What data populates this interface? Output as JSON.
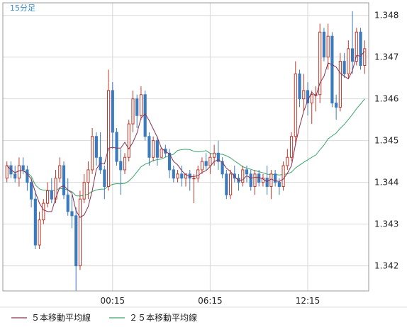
{
  "chart_data": {
    "type": "candlestick",
    "period_label": "15分足",
    "x_tick_labels": [
      "00:15",
      "06:15",
      "12:15"
    ],
    "x_tick_index": [
      26,
      50,
      74
    ],
    "ylim": [
      1.3414,
      1.3483
    ],
    "y_ticks": [
      1.342,
      1.343,
      1.344,
      1.345,
      1.346,
      1.347,
      1.348
    ],
    "y_tick_labels": [
      "1.342",
      "1.343",
      "1.344",
      "1.345",
      "1.346",
      "1.347",
      "1.348"
    ],
    "grid": true,
    "legend_position": "bottom-left",
    "colors": {
      "up": "#c0392b",
      "down": "#3a7abf",
      "ma5": "#8b3050",
      "ma25": "#3aa66a",
      "grid": "#d8d8d8",
      "frame": "#999999"
    },
    "series": [
      {
        "name": "５本移動平均線",
        "color": "#8b3050"
      },
      {
        "name": "２５本移動平均線",
        "color": "#3aa66a"
      }
    ],
    "candles": [
      [
        1.3441,
        1.3445,
        1.344,
        1.3444
      ],
      [
        1.3444,
        1.3445,
        1.3441,
        1.3442
      ],
      [
        1.3442,
        1.3444,
        1.344,
        1.3441
      ],
      [
        1.3441,
        1.3446,
        1.3439,
        1.3444
      ],
      [
        1.3444,
        1.3446,
        1.3442,
        1.3443
      ],
      [
        1.3443,
        1.3444,
        1.3438,
        1.344
      ],
      [
        1.344,
        1.3441,
        1.3434,
        1.3436
      ],
      [
        1.3436,
        1.3438,
        1.3424,
        1.3425
      ],
      [
        1.3425,
        1.3433,
        1.3424,
        1.3431
      ],
      [
        1.3431,
        1.3436,
        1.343,
        1.3435
      ],
      [
        1.3435,
        1.344,
        1.3434,
        1.3438
      ],
      [
        1.3438,
        1.3441,
        1.3435,
        1.3436
      ],
      [
        1.3436,
        1.3443,
        1.3435,
        1.3441
      ],
      [
        1.3441,
        1.3446,
        1.344,
        1.3444
      ],
      [
        1.3444,
        1.3445,
        1.3436,
        1.3437
      ],
      [
        1.3437,
        1.3441,
        1.3432,
        1.3433
      ],
      [
        1.3433,
        1.3437,
        1.3429,
        1.3432
      ],
      [
        1.3432,
        1.3434,
        1.3414,
        1.342
      ],
      [
        1.342,
        1.3438,
        1.3419,
        1.3436
      ],
      [
        1.3436,
        1.3442,
        1.3435,
        1.344
      ],
      [
        1.344,
        1.3445,
        1.3436,
        1.3443
      ],
      [
        1.3443,
        1.3453,
        1.3442,
        1.3451
      ],
      [
        1.3451,
        1.3452,
        1.3444,
        1.3446
      ],
      [
        1.3446,
        1.3452,
        1.3442,
        1.3443
      ],
      [
        1.3443,
        1.3444,
        1.3436,
        1.3439
      ],
      [
        1.3439,
        1.3467,
        1.3438,
        1.3462
      ],
      [
        1.3462,
        1.3464,
        1.3448,
        1.3452
      ],
      [
        1.3452,
        1.3453,
        1.3444,
        1.3445
      ],
      [
        1.3445,
        1.3448,
        1.3437,
        1.3443
      ],
      [
        1.3443,
        1.3447,
        1.3442,
        1.3446
      ],
      [
        1.3446,
        1.3455,
        1.3445,
        1.3454
      ],
      [
        1.3454,
        1.3462,
        1.3452,
        1.346
      ],
      [
        1.346,
        1.3461,
        1.3453,
        1.3456
      ],
      [
        1.3456,
        1.3463,
        1.3455,
        1.3461
      ],
      [
        1.3461,
        1.3462,
        1.345,
        1.3451
      ],
      [
        1.3451,
        1.3452,
        1.3444,
        1.3446
      ],
      [
        1.3446,
        1.3451,
        1.3445,
        1.345
      ],
      [
        1.345,
        1.3451,
        1.3444,
        1.3446
      ],
      [
        1.3446,
        1.3448,
        1.3446,
        1.3448
      ],
      [
        1.3448,
        1.3449,
        1.3446,
        1.3447
      ],
      [
        1.3447,
        1.3448,
        1.3441,
        1.3443
      ],
      [
        1.3443,
        1.3444,
        1.344,
        1.3441
      ],
      [
        1.3441,
        1.3443,
        1.344,
        1.3442
      ],
      [
        1.3442,
        1.3444,
        1.3439,
        1.3441
      ],
      [
        1.3441,
        1.3442,
        1.3439,
        1.3442
      ],
      [
        1.3442,
        1.3443,
        1.3438,
        1.3441
      ],
      [
        1.3441,
        1.3442,
        1.3435,
        1.3441
      ],
      [
        1.3441,
        1.3444,
        1.344,
        1.3443
      ],
      [
        1.3443,
        1.3446,
        1.3442,
        1.3445
      ],
      [
        1.3445,
        1.3447,
        1.3443,
        1.3444
      ],
      [
        1.3444,
        1.3447,
        1.3442,
        1.3446
      ],
      [
        1.3446,
        1.3449,
        1.3444,
        1.3447
      ],
      [
        1.3447,
        1.345,
        1.3443,
        1.3445
      ],
      [
        1.3445,
        1.3446,
        1.3441,
        1.3442
      ],
      [
        1.3442,
        1.3443,
        1.3436,
        1.3437
      ],
      [
        1.3437,
        1.3443,
        1.3436,
        1.3442
      ],
      [
        1.3442,
        1.3444,
        1.344,
        1.3441
      ],
      [
        1.3441,
        1.3442,
        1.3438,
        1.344
      ],
      [
        1.344,
        1.3444,
        1.3439,
        1.3443
      ],
      [
        1.3443,
        1.3444,
        1.344,
        1.3442
      ],
      [
        1.3442,
        1.3443,
        1.3438,
        1.3439
      ],
      [
        1.3439,
        1.3443,
        1.3437,
        1.3442
      ],
      [
        1.3442,
        1.3443,
        1.3439,
        1.344
      ],
      [
        1.344,
        1.3442,
        1.3439,
        1.3441
      ],
      [
        1.3441,
        1.3444,
        1.3437,
        1.3439
      ],
      [
        1.3439,
        1.3443,
        1.3436,
        1.3442
      ],
      [
        1.3442,
        1.3443,
        1.3439,
        1.344
      ],
      [
        1.344,
        1.3441,
        1.3437,
        1.3439
      ],
      [
        1.3439,
        1.3445,
        1.3438,
        1.3444
      ],
      [
        1.3444,
        1.3448,
        1.3443,
        1.3446
      ],
      [
        1.3446,
        1.3452,
        1.3445,
        1.3451
      ],
      [
        1.3451,
        1.3469,
        1.3449,
        1.3466
      ],
      [
        1.3466,
        1.3467,
        1.3458,
        1.346
      ],
      [
        1.346,
        1.3466,
        1.3457,
        1.3462
      ],
      [
        1.3462,
        1.3464,
        1.3456,
        1.3459
      ],
      [
        1.3459,
        1.3462,
        1.3454,
        1.3461
      ],
      [
        1.3461,
        1.3463,
        1.3457,
        1.3461
      ],
      [
        1.3461,
        1.3478,
        1.3459,
        1.3476
      ],
      [
        1.3476,
        1.3477,
        1.3469,
        1.347
      ],
      [
        1.347,
        1.3478,
        1.3467,
        1.3475
      ],
      [
        1.3475,
        1.3476,
        1.3458,
        1.3459
      ],
      [
        1.3459,
        1.3461,
        1.3455,
        1.3458
      ],
      [
        1.3458,
        1.3471,
        1.3457,
        1.3469
      ],
      [
        1.3469,
        1.3471,
        1.3465,
        1.3466
      ],
      [
        1.3466,
        1.3474,
        1.3465,
        1.3472
      ],
      [
        1.3472,
        1.3481,
        1.3466,
        1.3469
      ],
      [
        1.3469,
        1.3477,
        1.3468,
        1.3476
      ],
      [
        1.3476,
        1.3477,
        1.3467,
        1.3468
      ],
      [
        1.3468,
        1.3474,
        1.3466,
        1.3472
      ]
    ]
  }
}
